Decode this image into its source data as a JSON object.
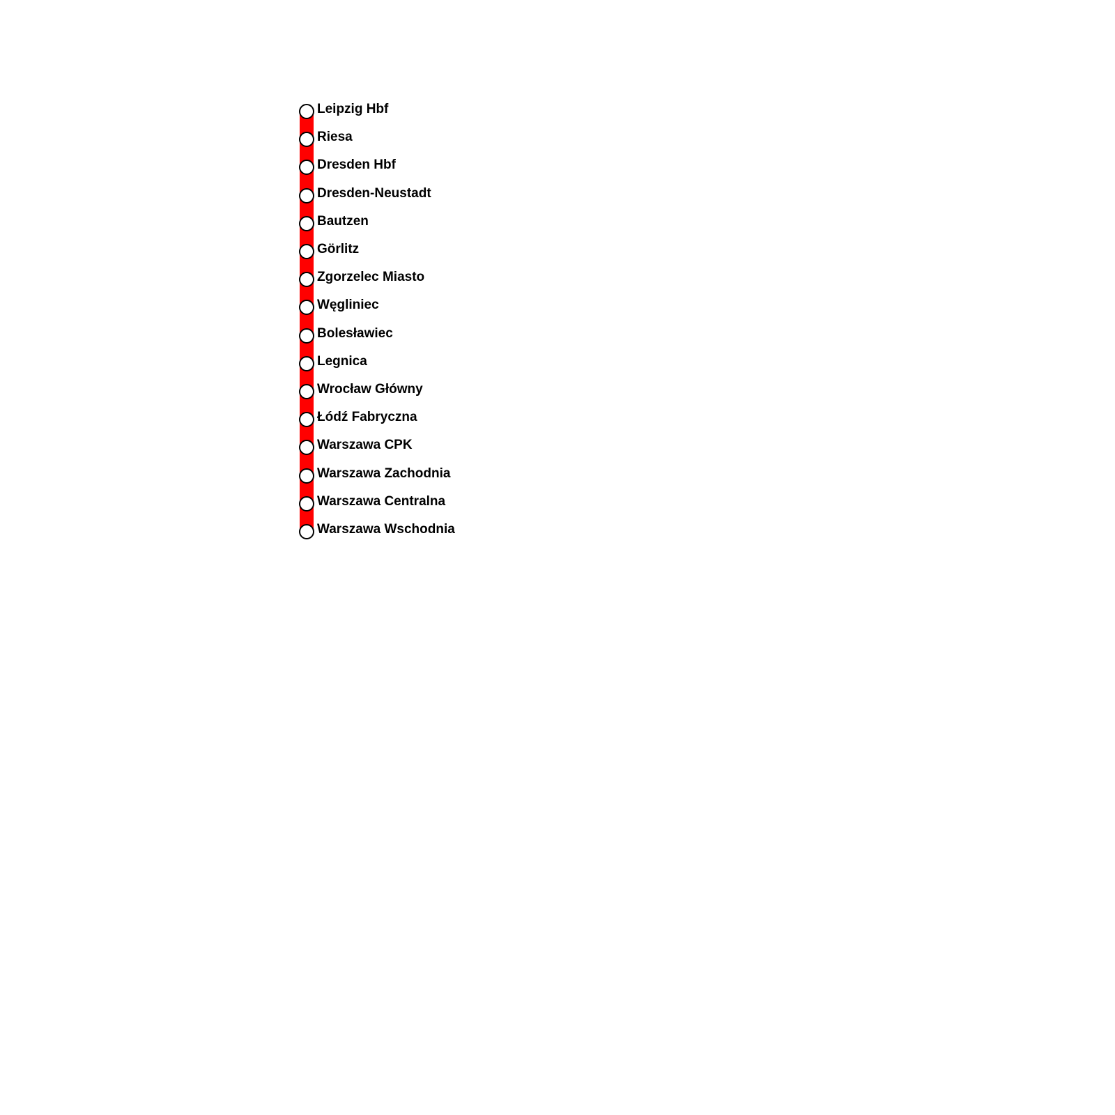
{
  "line_color": "#ff0000",
  "stations": [
    "Leipzig Hbf",
    "Riesa",
    "Dresden Hbf",
    "Dresden-Neustadt",
    "Bautzen",
    "Görlitz",
    "Zgorzelec Miasto",
    "Węgliniec",
    "Bolesławiec",
    "Legnica",
    "Wrocław Główny",
    "Łódź Fabryczna",
    "Warszawa CPK",
    "Warszawa Zachodnia",
    "Warszawa Centralna",
    "Warszawa Wschodnia"
  ]
}
